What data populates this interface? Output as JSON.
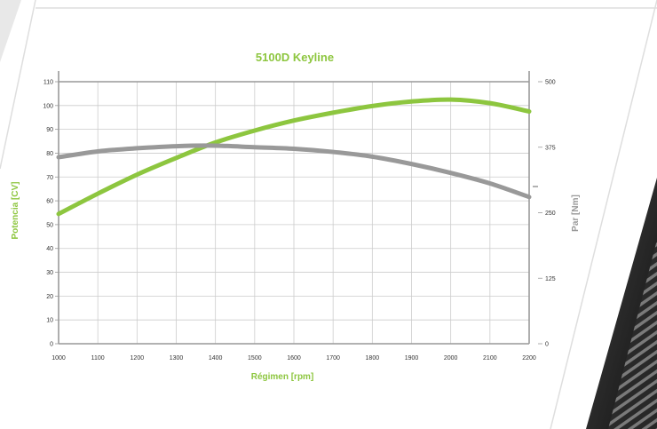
{
  "chart_data": {
    "type": "line",
    "title": "5100D Keyline",
    "xlabel": "Régimen [rpm]",
    "ylabel": "Potencia [CV]",
    "y2label": "Par [Nm]",
    "x": [
      1000,
      1100,
      1200,
      1300,
      1400,
      1500,
      1600,
      1700,
      1800,
      1900,
      2000,
      2100,
      2200
    ],
    "xticks": [
      "1000",
      "1100",
      "1200",
      "1300",
      "1400",
      "1500",
      "1600",
      "1700",
      "1800",
      "1900",
      "2000",
      "2100",
      "2200"
    ],
    "xlim": [
      1000,
      2200
    ],
    "ylim": [
      0,
      110
    ],
    "y2lim": [
      0,
      500
    ],
    "yticks": [
      "0",
      "10",
      "20",
      "30",
      "40",
      "50",
      "60",
      "70",
      "80",
      "90",
      "100",
      "110"
    ],
    "y2ticks": [
      "0",
      "125",
      "250",
      "375",
      "500"
    ],
    "grid": true,
    "series": [
      {
        "axis": "left",
        "color": "#8dc63f",
        "values": [
          54.5,
          63,
          71,
          78,
          84.5,
          89.5,
          93.7,
          97,
          99.8,
          101.7,
          102.5,
          101,
          97.5
        ]
      },
      {
        "axis": "right",
        "color": "#999999",
        "values": [
          356,
          367,
          373,
          377,
          378,
          375,
          372,
          366,
          357,
          343,
          326,
          306,
          280
        ]
      }
    ],
    "colors": {
      "accent": "#8dc63f",
      "gray": "#999999",
      "grid": "#cccccc"
    }
  }
}
